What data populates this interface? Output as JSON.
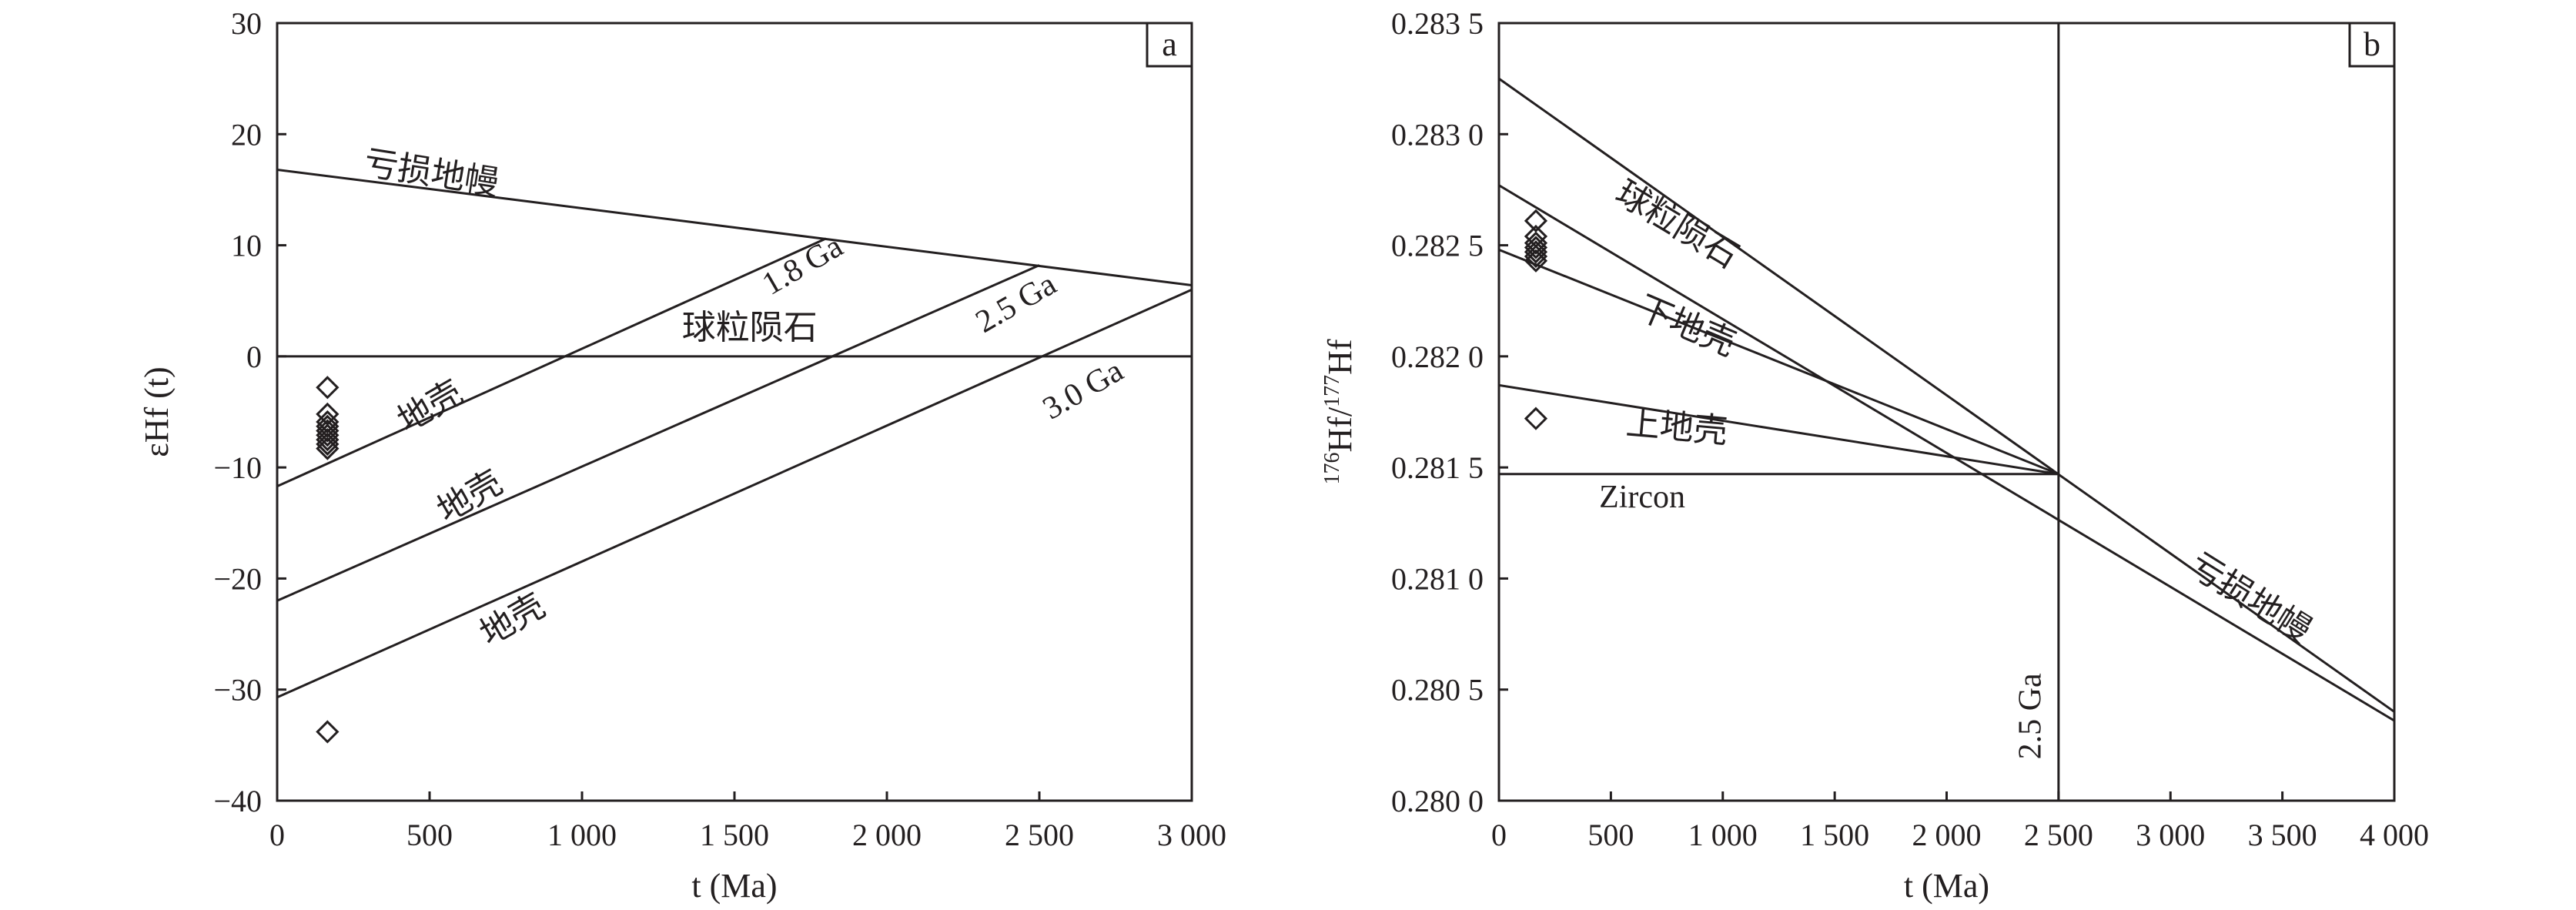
{
  "chart_data": [
    {
      "type": "line",
      "panel_label": "a",
      "xlabel": "t (Ma)",
      "ylabel": "εHf (t)",
      "xlim": [
        0,
        3000
      ],
      "ylim": [
        -40,
        30
      ],
      "x_ticks": [
        0,
        500,
        1000,
        1500,
        2000,
        2500,
        3000
      ],
      "x_tick_labels": [
        "0",
        "500",
        "1 000",
        "1 500",
        "2 000",
        "2 500",
        "3 000"
      ],
      "y_ticks": [
        -40,
        -30,
        -20,
        -10,
        0,
        10,
        20,
        30
      ],
      "y_tick_labels": [
        "−40",
        "−30",
        "−20",
        "−10",
        "0",
        "10",
        "20",
        "30"
      ],
      "grid": false,
      "lines": [
        {
          "name": "亏损地幔",
          "x": [
            0,
            3000
          ],
          "y": [
            16.8,
            6.4
          ]
        },
        {
          "name": "球粒陨石",
          "x": [
            0,
            3000
          ],
          "y": [
            0,
            0
          ]
        },
        {
          "name": "1.8 Ga",
          "x": [
            0,
            1800
          ],
          "y": [
            -11.7,
            10.6
          ]
        },
        {
          "name": "2.5 Ga",
          "x": [
            0,
            2500
          ],
          "y": [
            -22.0,
            8.2
          ]
        },
        {
          "name": "3.0 Ga",
          "x": [
            0,
            3000
          ],
          "y": [
            -30.7,
            6.0
          ]
        }
      ],
      "annotations": [
        {
          "text": "亏损地幔",
          "x": 500,
          "y": 15.5,
          "angle": 9
        },
        {
          "text": "1.8 Ga",
          "x": 1740,
          "y": 7.4,
          "angle": -30
        },
        {
          "text": "2.5 Ga",
          "x": 2440,
          "y": 4.0,
          "angle": -30
        },
        {
          "text": "3.0 Ga",
          "x": 2660,
          "y": -3.8,
          "angle": -30
        },
        {
          "text": "球粒陨石",
          "x": 1550,
          "y": 1.6,
          "angle": 0
        },
        {
          "text": "地壳",
          "x": 520,
          "y": -5.4,
          "angle": -30
        },
        {
          "text": "地壳",
          "x": 650,
          "y": -13.5,
          "angle": -30
        },
        {
          "text": "地壳",
          "x": 790,
          "y": -24.6,
          "angle": -30
        }
      ],
      "series": [
        {
          "name": "",
          "marker": "diamond",
          "x": [
            165,
            165,
            165,
            165,
            165,
            165,
            165,
            165,
            165,
            165
          ],
          "y": [
            -2.8,
            -5.2,
            -5.9,
            -6.3,
            -6.7,
            -7.1,
            -7.5,
            -7.9,
            -8.3,
            -33.8
          ]
        }
      ]
    },
    {
      "type": "line",
      "panel_label": "b",
      "xlabel": "t (Ma)",
      "ylabel_parts": [
        "176",
        "Hf/",
        "177",
        "Hf"
      ],
      "xlim": [
        0,
        4000
      ],
      "ylim": [
        0.28,
        0.2835
      ],
      "x_ticks": [
        0,
        500,
        1000,
        1500,
        2000,
        2500,
        3000,
        3500,
        4000
      ],
      "x_tick_labels": [
        "0",
        "500",
        "1 000",
        "1 500",
        "2 000",
        "2 500",
        "3 000",
        "3 500",
        "4 000"
      ],
      "y_ticks": [
        0.28,
        0.2805,
        0.281,
        0.2815,
        0.282,
        0.2825,
        0.283,
        0.2835
      ],
      "y_tick_labels": [
        "0.280 0",
        "0.280 5",
        "0.281 0",
        "0.281 5",
        "0.282 0",
        "0.282 5",
        "0.283 0",
        "0.283 5"
      ],
      "grid": false,
      "lines": [
        {
          "name": "亏损地幔",
          "x": [
            0,
            4000
          ],
          "y": [
            0.28325,
            0.2804
          ]
        },
        {
          "name": "球粒陨石",
          "x": [
            0,
            4000
          ],
          "y": [
            0.28277,
            0.28036
          ]
        },
        {
          "name": "下地壳",
          "x": [
            0,
            2500
          ],
          "y": [
            0.28248,
            0.28147
          ]
        },
        {
          "name": "上地壳",
          "x": [
            0,
            2500
          ],
          "y": [
            0.28187,
            0.28147
          ]
        },
        {
          "name": "Zircon",
          "x": [
            0,
            2500
          ],
          "y": [
            0.28147,
            0.28147
          ]
        },
        {
          "name": "2.5 Ga",
          "x": [
            2500,
            2500
          ],
          "y": [
            0.28,
            0.2835
          ]
        }
      ],
      "annotations": [
        {
          "text": "球粒陨石",
          "x": 770,
          "y": 0.28255,
          "angle": 31
        },
        {
          "text": "下地壳",
          "x": 820,
          "y": 0.28209,
          "angle": 23
        },
        {
          "text": "上地壳",
          "x": 790,
          "y": 0.28163,
          "angle": 5
        },
        {
          "text": "Zircon",
          "x": 640,
          "y": 0.28132,
          "angle": 0
        },
        {
          "text": "亏损地幔",
          "x": 3330,
          "y": 0.28087,
          "angle": 32
        },
        {
          "text": "2.5 Ga",
          "x": 2420,
          "y": 0.28038,
          "angle": -90
        }
      ],
      "series": [
        {
          "name": "",
          "marker": "diamond",
          "x": [
            165,
            165,
            165,
            165,
            165,
            165,
            165,
            165
          ],
          "y": [
            0.28261,
            0.28254,
            0.28251,
            0.28249,
            0.28247,
            0.28245,
            0.28243,
            0.28172
          ]
        }
      ]
    }
  ]
}
